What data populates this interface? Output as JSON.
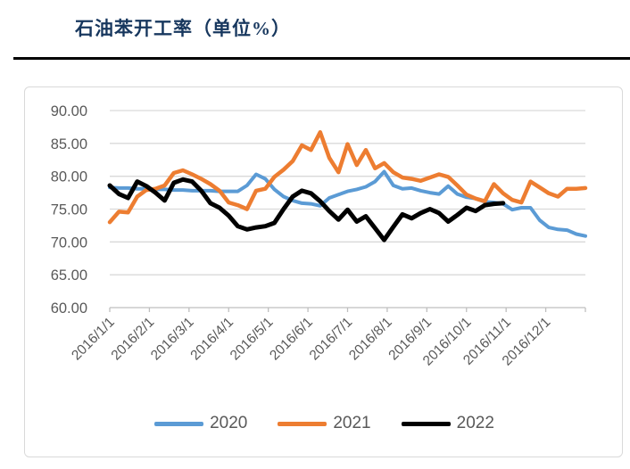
{
  "header": {
    "title": "石油苯开工率（单位%）"
  },
  "colors": {
    "title_text": "#17375E",
    "rule": "#000000",
    "axis_text": "#595959",
    "gridline": "#D9D9D9",
    "axis_line": "#BFBFBF",
    "card_border": "#D9D9D9",
    "series_2020": "#5B9BD5",
    "series_2021": "#ED7D31",
    "series_2022": "#000000"
  },
  "chart_data": {
    "type": "line",
    "title": "石油苯开工率（单位%）",
    "x_unit": "weekly observations across one calendar year",
    "points_per_year": 52,
    "x_tick_labels": [
      "2016/1/1",
      "2016/2/1",
      "2016/3/1",
      "2016/4/1",
      "2016/5/1",
      "2016/6/1",
      "2016/7/1",
      "2016/8/1",
      "2016/9/1",
      "2016/10/1",
      "2016/11/1",
      "2016/12/1"
    ],
    "y_tick_labels": [
      "60.00",
      "65.00",
      "70.00",
      "75.00",
      "80.00",
      "85.00",
      "90.00"
    ],
    "y_ticks": [
      60,
      65,
      70,
      75,
      80,
      85,
      90
    ],
    "ylim": [
      60,
      90
    ],
    "grid": true,
    "legend_position": "bottom",
    "series": [
      {
        "name": "2020",
        "color": "#5B9BD5",
        "stroke_width": 4,
        "values": [
          78.3,
          78.2,
          78.2,
          78.1,
          78.1,
          78.0,
          78.0,
          77.9,
          77.9,
          77.8,
          77.8,
          77.8,
          77.7,
          77.7,
          77.7,
          78.6,
          80.3,
          79.6,
          78.0,
          76.9,
          76.3,
          75.9,
          75.8,
          75.5,
          76.7,
          77.2,
          77.7,
          78.0,
          78.4,
          79.2,
          80.7,
          78.6,
          78.1,
          78.2,
          77.8,
          77.5,
          77.3,
          78.5,
          77.3,
          76.8,
          76.6,
          76.1,
          76.0,
          75.8,
          74.9,
          75.2,
          75.2,
          73.3,
          72.2,
          71.9,
          71.8,
          71.2,
          70.9
        ]
      },
      {
        "name": "2021",
        "color": "#ED7D31",
        "stroke_width": 4.5,
        "values": [
          73.0,
          74.6,
          74.5,
          76.9,
          77.9,
          78.1,
          78.6,
          80.5,
          80.9,
          80.3,
          79.6,
          78.8,
          77.8,
          76.0,
          75.6,
          75.0,
          77.8,
          78.1,
          79.9,
          81.0,
          82.3,
          84.7,
          84.0,
          86.7,
          82.8,
          80.6,
          84.9,
          81.7,
          84.0,
          81.2,
          82.0,
          80.6,
          79.8,
          79.6,
          79.3,
          79.8,
          80.3,
          79.9,
          78.6,
          77.2,
          76.6,
          76.2,
          78.8,
          77.4,
          76.4,
          76.0,
          79.2,
          78.3,
          77.4,
          76.9,
          78.1,
          78.1,
          78.2
        ]
      },
      {
        "name": "2022",
        "color": "#000000",
        "stroke_width": 5,
        "values": [
          78.6,
          77.3,
          76.7,
          79.2,
          78.5,
          77.5,
          76.3,
          79.0,
          79.5,
          79.2,
          77.8,
          75.9,
          75.2,
          74.0,
          72.4,
          71.9,
          72.2,
          72.4,
          72.9,
          75.0,
          76.9,
          77.8,
          77.4,
          76.2,
          74.7,
          73.4,
          74.9,
          73.1,
          73.9,
          72.1,
          70.3,
          72.3,
          74.2,
          73.6,
          74.4,
          75.0,
          74.4,
          73.1,
          74.1,
          75.2,
          74.7,
          75.6,
          75.8,
          75.9
        ]
      }
    ]
  }
}
